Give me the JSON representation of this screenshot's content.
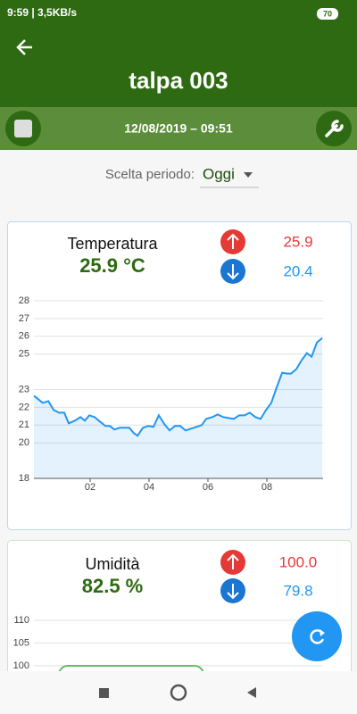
{
  "status_bar": {
    "time_speed": "9:59 | 3,5KB/s",
    "battery": "70"
  },
  "header": {
    "title": "talpa 003",
    "datetime": "12/08/2019 – 09:51"
  },
  "period": {
    "label": "Scelta periodo:",
    "value": "Oggi"
  },
  "chart_data": [
    {
      "type": "line",
      "title": "Temperatura",
      "current": "25.9 °C",
      "max": "25.9",
      "min": "20.4",
      "color": "#2196f3",
      "x": [
        0.09,
        0.39,
        0.58,
        0.76,
        0.94,
        1.12,
        1.27,
        1.48,
        1.67,
        1.82,
        1.97,
        2.15,
        2.33,
        2.52,
        2.67,
        2.82,
        3.0,
        3.18,
        3.33,
        3.48,
        3.61,
        3.79,
        3.97,
        4.15,
        4.33,
        4.52,
        4.7,
        4.88,
        5.06,
        5.24,
        5.42,
        5.61,
        5.79,
        5.94,
        6.15,
        6.33,
        6.52,
        6.7,
        6.88,
        7.06,
        7.24,
        7.42,
        7.61,
        7.79,
        7.97,
        8.15,
        8.33,
        8.52,
        8.7,
        8.82,
        9.0,
        9.18,
        9.36,
        9.52,
        9.7,
        9.88
      ],
      "values": [
        22.65,
        22.25,
        22.35,
        21.85,
        21.7,
        21.7,
        21.1,
        21.25,
        21.45,
        21.25,
        21.55,
        21.45,
        21.2,
        20.95,
        20.95,
        20.75,
        20.85,
        20.85,
        20.85,
        20.55,
        20.4,
        20.85,
        20.95,
        20.9,
        21.55,
        21.05,
        20.7,
        20.95,
        20.95,
        20.7,
        20.8,
        20.9,
        21.0,
        21.35,
        21.45,
        21.6,
        21.45,
        21.4,
        21.35,
        21.55,
        21.55,
        21.7,
        21.45,
        21.35,
        21.85,
        22.25,
        23.1,
        23.95,
        23.9,
        23.9,
        24.15,
        24.65,
        25.05,
        24.85,
        25.65,
        25.9
      ],
      "xlim": [
        0.09,
        9.91
      ],
      "xticks": [
        {
          "value": 2,
          "label": "02"
        },
        {
          "value": 4,
          "label": "04"
        },
        {
          "value": 6,
          "label": "06"
        },
        {
          "value": 8,
          "label": "08"
        }
      ],
      "ylim": [
        18,
        28
      ],
      "yticks": [
        18,
        20,
        21,
        22,
        23,
        25,
        26,
        27,
        28
      ],
      "grid": true
    },
    {
      "type": "line",
      "title": "Umidità",
      "current": "82.5 %",
      "max": "100.0",
      "min": "79.8",
      "color": "#2196f3",
      "ylim": [
        100,
        110
      ],
      "yticks": [
        100,
        105,
        110
      ],
      "grid": true
    }
  ]
}
